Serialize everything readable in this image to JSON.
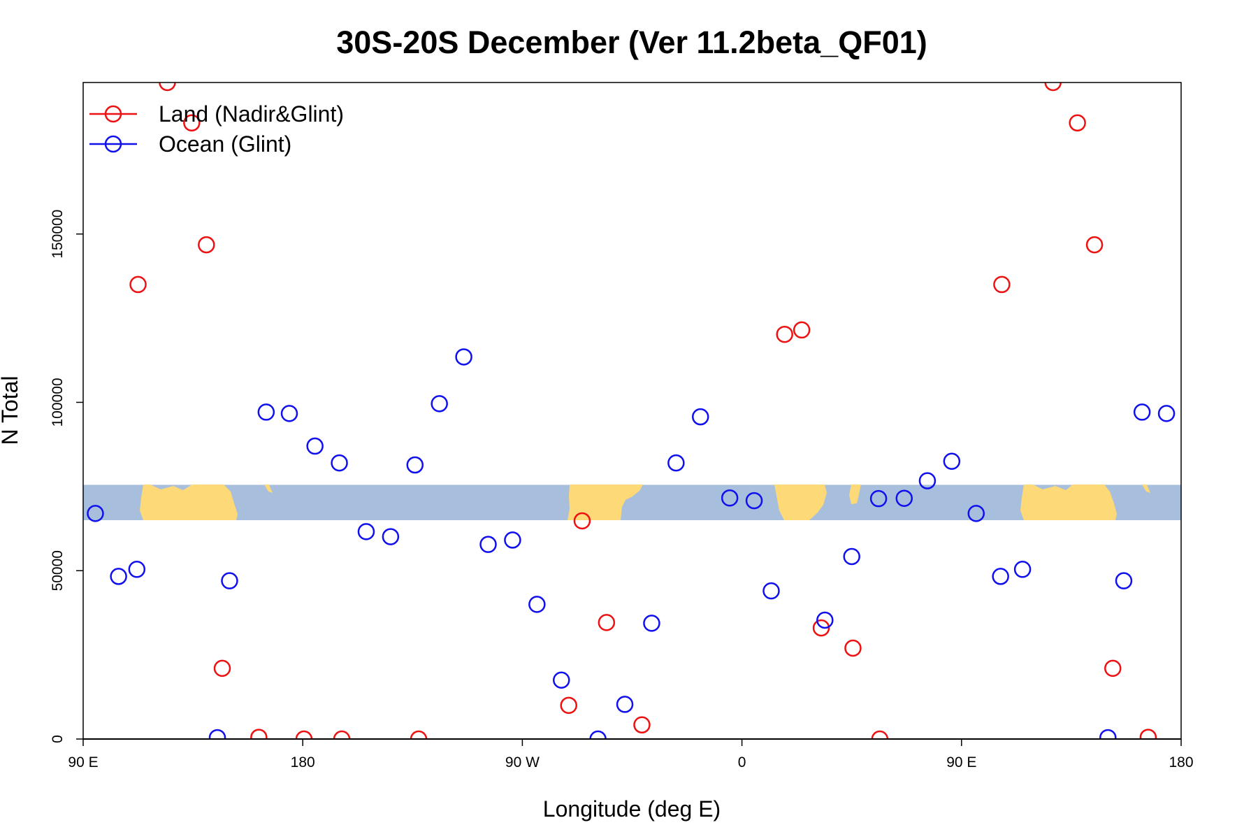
{
  "chart_data": {
    "type": "scatter",
    "title": "30S-20S December (Ver 11.2beta_QF01)",
    "xlabel": "Longitude (deg E)",
    "ylabel": "N Total",
    "xlim": [
      90,
      540
    ],
    "ylim": [
      0,
      195000
    ],
    "x_ticks": [
      {
        "value": 90,
        "label": "90 E"
      },
      {
        "value": 180,
        "label": "180"
      },
      {
        "value": 270,
        "label": "90 W"
      },
      {
        "value": 360,
        "label": "0"
      },
      {
        "value": 450,
        "label": "90 E"
      },
      {
        "value": 540,
        "label": "180"
      }
    ],
    "y_ticks": [
      {
        "value": 0,
        "label": "0"
      },
      {
        "value": 50000,
        "label": "50000"
      },
      {
        "value": 100000,
        "label": "100000"
      },
      {
        "value": 150000,
        "label": "150000"
      }
    ],
    "legend_position": "top-left",
    "map_band": {
      "y_from": 65000,
      "y_to": 75500,
      "ocean_color": "#a8bedd",
      "land_color": "#fdd978"
    },
    "series": [
      {
        "name": "Land (Nadir&Glint)",
        "color": "#ee1111",
        "points": [
          [
            124.5,
            195000
          ],
          [
            112.5,
            135000
          ],
          [
            134.5,
            183000
          ],
          [
            140.5,
            146800
          ],
          [
            147,
            21000
          ],
          [
            162,
            500
          ],
          [
            180.5,
            0
          ],
          [
            196,
            0
          ],
          [
            227.5,
            0
          ],
          [
            289,
            10000
          ],
          [
            294.5,
            64800
          ],
          [
            304.5,
            34600
          ],
          [
            319,
            4200
          ],
          [
            377.5,
            120200
          ],
          [
            384.5,
            121500
          ],
          [
            392.5,
            33000
          ],
          [
            405.5,
            27000
          ],
          [
            416.5,
            0
          ],
          [
            487.5,
            195000
          ],
          [
            466.5,
            135000
          ],
          [
            497.5,
            183000
          ],
          [
            504.5,
            146800
          ],
          [
            512,
            21000
          ],
          [
            526.5,
            500
          ]
        ]
      },
      {
        "name": "Ocean (Glint)",
        "color": "#1010ee",
        "points": [
          [
            95,
            67000
          ],
          [
            104.5,
            48300
          ],
          [
            112,
            50400
          ],
          [
            150,
            47000
          ],
          [
            145,
            400
          ],
          [
            165,
            97100
          ],
          [
            174.5,
            96700
          ],
          [
            185,
            87000
          ],
          [
            195,
            82000
          ],
          [
            206,
            61600
          ],
          [
            216,
            60100
          ],
          [
            226,
            81400
          ],
          [
            236,
            99600
          ],
          [
            246,
            113500
          ],
          [
            256,
            57800
          ],
          [
            266,
            59100
          ],
          [
            276,
            40000
          ],
          [
            286,
            17500
          ],
          [
            301,
            0
          ],
          [
            312,
            10300
          ],
          [
            323,
            34400
          ],
          [
            333,
            82000
          ],
          [
            343,
            95700
          ],
          [
            355,
            71600
          ],
          [
            365,
            70800
          ],
          [
            372,
            44000
          ],
          [
            394,
            35300
          ],
          [
            405,
            54200
          ],
          [
            416,
            71400
          ],
          [
            426.5,
            71500
          ],
          [
            436,
            76700
          ],
          [
            446,
            82500
          ],
          [
            456,
            67000
          ],
          [
            466,
            48300
          ],
          [
            475,
            50400
          ],
          [
            516.5,
            47000
          ],
          [
            510,
            400
          ],
          [
            524,
            97100
          ],
          [
            534,
            96700
          ]
        ]
      }
    ]
  }
}
